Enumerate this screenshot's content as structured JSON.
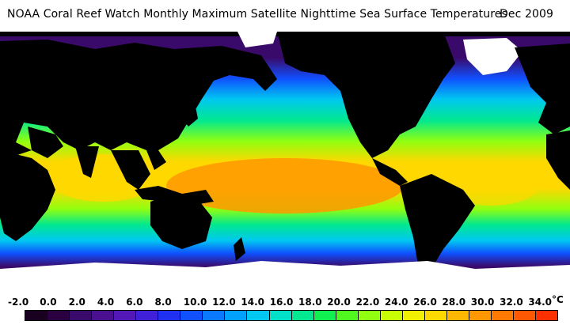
{
  "title": "NOAA Coral Reef Watch Monthly Maximum Satellite Nighttime Sea Surface Temperatures",
  "date": "Dec 2009",
  "legend": {
    "unit": "°C",
    "ticks": [
      "-2.0",
      "0.0",
      "2.0",
      "4.0",
      "6.0",
      "8.0",
      "10.0",
      "12.0",
      "14.0",
      "16.0",
      "18.0",
      "20.0",
      "22.0",
      "24.0",
      "26.0",
      "28.0",
      "30.0",
      "32.0",
      "34.0"
    ],
    "swatches": [
      "#1a0020",
      "#2b0040",
      "#3a0a6a",
      "#4a1090",
      "#5418b8",
      "#4020d8",
      "#2030f0",
      "#1050ff",
      "#0a78ff",
      "#00a0ff",
      "#00c8f0",
      "#00e0c8",
      "#00e890",
      "#10f050",
      "#50f820",
      "#90ff10",
      "#c8ff00",
      "#f0f000",
      "#ffd800",
      "#ffb800",
      "#ff9800",
      "#ff7800",
      "#ff5800",
      "#ff3000"
    ]
  },
  "colors": {
    "land": "#000000",
    "ice": "#ffffff",
    "polar": "#3a0a6a",
    "cold": "#1050ff",
    "cool": "#00c8f0",
    "mild": "#00e890",
    "warm": "#90ff10",
    "hot": "#ffd800",
    "hottest": "#ff9800"
  }
}
